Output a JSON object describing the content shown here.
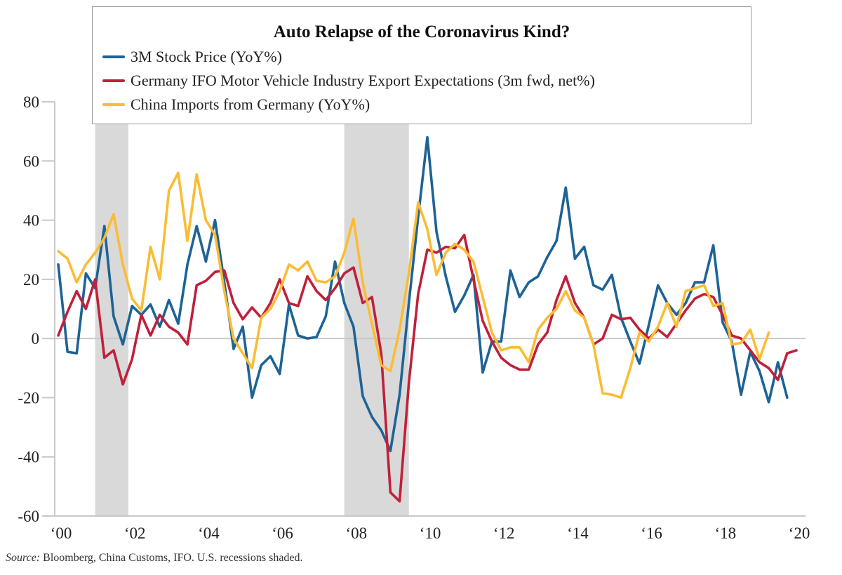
{
  "chart_data": {
    "type": "line",
    "title": "Auto Relapse of the Coronavirus Kind?",
    "xlabel": "",
    "ylabel": "",
    "ylim": [
      -60,
      80
    ],
    "xlim": [
      2000,
      2020.75
    ],
    "yticks": [
      80,
      60,
      40,
      20,
      0,
      -20,
      -40,
      -60
    ],
    "xticks": [
      {
        "value": 2000,
        "label": "‘00"
      },
      {
        "value": 2002,
        "label": "‘02"
      },
      {
        "value": 2004,
        "label": "‘04"
      },
      {
        "value": 2006,
        "label": "‘06"
      },
      {
        "value": 2008,
        "label": "‘08"
      },
      {
        "value": 2010,
        "label": "‘10"
      },
      {
        "value": 2012,
        "label": "‘12"
      },
      {
        "value": 2014,
        "label": "‘14"
      },
      {
        "value": 2016,
        "label": "‘16"
      },
      {
        "value": 2018,
        "label": "‘18"
      },
      {
        "value": 2020,
        "label": "‘20"
      }
    ],
    "x_start": 2000,
    "x_step": 0.25,
    "recessions": [
      [
        2001.0,
        2001.9
      ],
      [
        2007.75,
        2009.5
      ]
    ],
    "grid": false,
    "legend_position": "top",
    "series": [
      {
        "name": "3M Stock Price (YoY%)",
        "color": "#1d6396",
        "values": [
          25,
          -4.5,
          -5,
          22,
          17,
          38,
          7.5,
          -2,
          11,
          8,
          11.5,
          4,
          13,
          5,
          25,
          38,
          26,
          40,
          19,
          -3.5,
          4,
          -20,
          -9,
          -6,
          -12,
          11.5,
          1,
          0,
          0.5,
          7.5,
          26,
          12,
          4,
          -19.5,
          -26.5,
          -31,
          -38,
          -19,
          12,
          41,
          68,
          36,
          21,
          9,
          14.5,
          21.5,
          -11.5,
          -1,
          -1,
          23,
          14,
          19,
          21,
          27.5,
          33,
          51,
          27,
          31,
          18,
          16.5,
          21.5,
          7,
          -1,
          -8.5,
          4.5,
          18,
          12,
          8,
          12,
          19,
          19,
          31.5,
          5.5,
          -1,
          -19,
          -4.5,
          -11,
          -21.5,
          -8,
          -20
        ]
      },
      {
        "name": "Germany IFO Motor Vehicle Industry Export Expectations (3m fwd, net%)",
        "color": "#c0203a",
        "values": [
          1,
          9,
          16,
          10,
          20,
          -6.5,
          -4,
          -15.5,
          -7,
          8,
          1,
          8,
          4,
          2,
          -2,
          18,
          19.5,
          22.5,
          23,
          12,
          6.5,
          10.5,
          7,
          12,
          20,
          12,
          11,
          21,
          16,
          13,
          17,
          22,
          24,
          12,
          14,
          -5,
          -52,
          -55,
          -15,
          15,
          30,
          29,
          31,
          30.5,
          35,
          20,
          6,
          -1,
          -6.5,
          -9,
          -10.5,
          -10.5,
          -2,
          2,
          13,
          21,
          12,
          7,
          -2,
          0,
          8,
          6.5,
          7,
          3,
          0,
          3,
          0.5,
          5,
          9.5,
          13.5,
          15,
          14,
          8,
          1,
          0,
          -4,
          -8,
          -10,
          -14,
          -5,
          -4
        ]
      },
      {
        "name": "China Imports from Germany (YoY%)",
        "color": "#fbbc34",
        "values": [
          29.5,
          27,
          19,
          25,
          29,
          34,
          42,
          25,
          13.5,
          9.5,
          31,
          20,
          50,
          56,
          33,
          55.5,
          40,
          35,
          16,
          0,
          -5,
          -10,
          7,
          10,
          16,
          25,
          23,
          26,
          19.5,
          19,
          21,
          29,
          40.5,
          19,
          5,
          -9,
          -11,
          3,
          22,
          46,
          37,
          21.5,
          29,
          32,
          30,
          26,
          14,
          2,
          -4,
          -3,
          -3,
          -8,
          3,
          7,
          10,
          16,
          9.5,
          7,
          -2,
          -18.5,
          -19,
          -20,
          -10,
          2,
          -1,
          4,
          12,
          4,
          16,
          17,
          18,
          11,
          12,
          -2,
          -1.5,
          3,
          -7,
          2
        ]
      }
    ]
  },
  "legend": {
    "title": "Auto Relapse of the Coronavirus Kind?",
    "items": [
      {
        "label": "3M Stock Price (YoY%)",
        "color": "#1d6396"
      },
      {
        "label": "Germany IFO Motor Vehicle Industry Export Expectations (3m fwd, net%)",
        "color": "#c0203a"
      },
      {
        "label": "China Imports from Germany (YoY%)",
        "color": "#fbbc34"
      }
    ]
  },
  "source": {
    "prefix": "Source:",
    "text": " Bloomberg, China Customs, IFO. U.S. recessions shaded."
  }
}
